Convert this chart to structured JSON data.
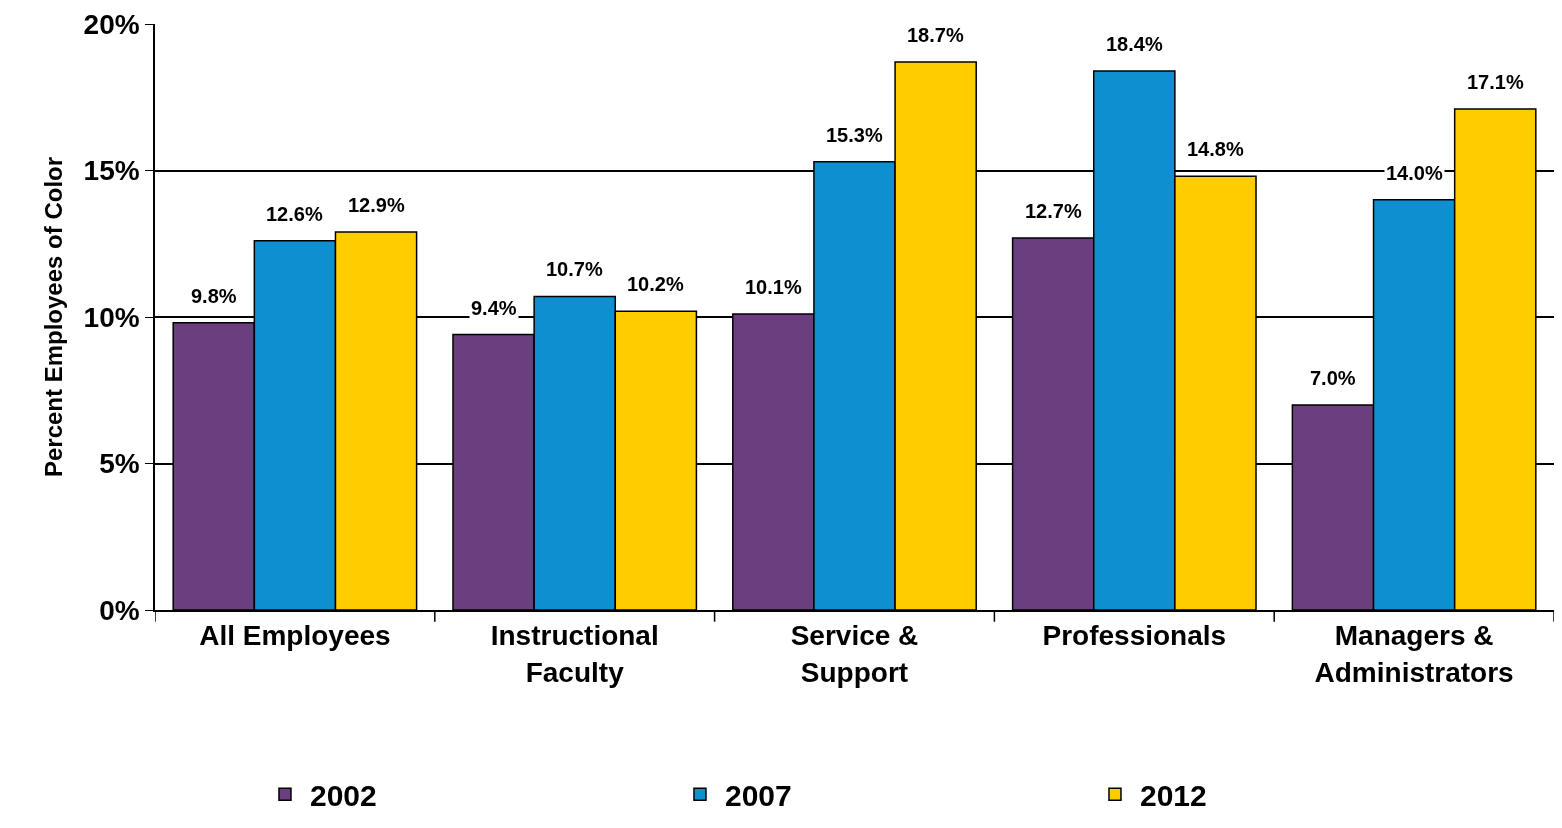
{
  "chart_data": {
    "type": "bar",
    "ylabel": "Percent Employees of Color",
    "categories": [
      "All Employees",
      "Instructional\nFaculty",
      "Service &\nSupport",
      "Professionals",
      "Managers &\nAdministrators"
    ],
    "series": [
      {
        "name": "2002",
        "color": "#6b3f7f",
        "values": [
          9.8,
          9.4,
          10.1,
          12.7,
          7.0
        ],
        "value_labels": [
          "9.8%",
          "9.4%",
          "10.1%",
          "12.7%",
          "7.0%"
        ]
      },
      {
        "name": "2007",
        "color": "#0e8fcf",
        "values": [
          12.6,
          10.7,
          15.3,
          18.4,
          14.0
        ],
        "value_labels": [
          "12.6%",
          "10.7%",
          "15.3%",
          "18.4%",
          "14.0%"
        ]
      },
      {
        "name": "2012",
        "color": "#ffcc00",
        "values": [
          12.9,
          10.2,
          18.7,
          14.8,
          17.1
        ],
        "value_labels": [
          "12.9%",
          "10.2%",
          "18.7%",
          "14.8%",
          "17.1%"
        ]
      }
    ],
    "ylim": [
      0,
      20
    ],
    "yticks": [
      {
        "value": 0,
        "label": "0%"
      },
      {
        "value": 5,
        "label": "5%"
      },
      {
        "value": 10,
        "label": "10%"
      },
      {
        "value": 15,
        "label": "15%"
      },
      {
        "value": 20,
        "label": "20%"
      }
    ],
    "grid": "y",
    "legend": "bottom"
  }
}
